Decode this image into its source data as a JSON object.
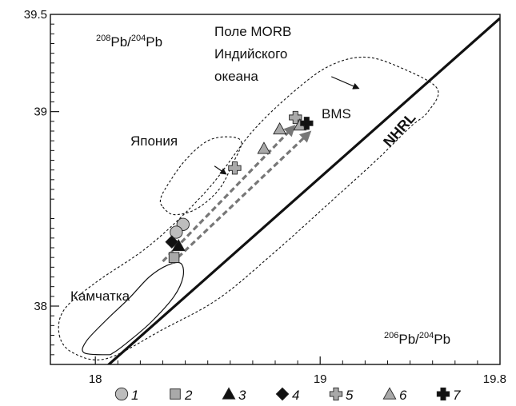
{
  "chart_data": {
    "type": "scatter",
    "xlim": [
      17.8,
      19.8
    ],
    "ylim": [
      37.7,
      39.5
    ],
    "x_major_ticks": [
      18,
      19,
      19.8
    ],
    "x_tick_labels": [
      "18",
      "19",
      "19.8"
    ],
    "x_minor_ticks": [
      18.1,
      18.2,
      18.3,
      18.4,
      18.5,
      18.6,
      18.7,
      18.8,
      18.9,
      19.1,
      19.2,
      19.3,
      19.4,
      19.5,
      19.6,
      19.7
    ],
    "y_major_ticks": [
      38,
      39,
      39.5
    ],
    "y_tick_labels": [
      "38",
      "39",
      "39.5"
    ],
    "y_minor_ticks": [
      37.75,
      37.8,
      37.85,
      37.9,
      37.95,
      38.05,
      38.1,
      38.15,
      38.2,
      38.25,
      38.3,
      38.35,
      38.4,
      38.45,
      38.55,
      38.6,
      38.65,
      38.7,
      38.75,
      38.8,
      38.85,
      38.9,
      38.95,
      39.05,
      39.1,
      39.15,
      39.2,
      39.25,
      39.3,
      39.35,
      39.4,
      39.45
    ],
    "x_axis_label": {
      "main": "Pb",
      "pre_sup_1": "206",
      "mid": "/",
      "pre_sup_2": "204",
      "tail": "Pb"
    },
    "y_axis_label": {
      "pre_sup_1": "208",
      "main": "Pb/",
      "pre_sup_2": "204",
      "tail": "Pb"
    },
    "annotations": {
      "morb": [
        "Поле MORB",
        "Индийского",
        "океана"
      ],
      "japan": "Япония",
      "kamchatka": "Камчатка",
      "bms": "BMS",
      "nhrl": "NHRL"
    },
    "reference_line": {
      "name": "NHRL",
      "points": [
        [
          18.05,
          37.69
        ],
        [
          19.8,
          39.48
        ]
      ]
    },
    "fields": [
      {
        "name": "Поле MORB Индийского океана",
        "style": "dotted",
        "points": [
          [
            17.84,
            37.85
          ],
          [
            17.9,
            37.76
          ],
          [
            18.05,
            37.73
          ],
          [
            18.3,
            37.88
          ],
          [
            18.55,
            38.04
          ],
          [
            18.8,
            38.28
          ],
          [
            19.05,
            38.54
          ],
          [
            19.25,
            38.75
          ],
          [
            19.4,
            38.92
          ],
          [
            19.48,
            39.0
          ],
          [
            19.52,
            39.12
          ],
          [
            19.35,
            39.23
          ],
          [
            19.2,
            39.28
          ],
          [
            19.05,
            39.24
          ],
          [
            18.9,
            39.12
          ],
          [
            18.7,
            38.9
          ],
          [
            18.5,
            38.6
          ],
          [
            18.25,
            38.32
          ],
          [
            18.0,
            38.12
          ],
          [
            17.86,
            37.98
          ]
        ]
      },
      {
        "name": "Япония",
        "style": "dotted",
        "points": [
          [
            18.3,
            38.51
          ],
          [
            18.35,
            38.47
          ],
          [
            18.45,
            38.5
          ],
          [
            18.55,
            38.6
          ],
          [
            18.61,
            38.73
          ],
          [
            18.65,
            38.84
          ],
          [
            18.6,
            38.87
          ],
          [
            18.5,
            38.85
          ],
          [
            18.4,
            38.75
          ],
          [
            18.32,
            38.62
          ],
          [
            18.29,
            38.55
          ]
        ]
      },
      {
        "name": "Камчатка",
        "style": "solid",
        "points": [
          [
            18.05,
            37.75
          ],
          [
            17.95,
            37.76
          ],
          [
            17.96,
            37.82
          ],
          [
            18.05,
            37.93
          ],
          [
            18.15,
            38.04
          ],
          [
            18.24,
            38.15
          ],
          [
            18.32,
            38.21
          ],
          [
            18.38,
            38.22
          ],
          [
            18.39,
            38.15
          ],
          [
            18.35,
            38.05
          ],
          [
            18.25,
            37.92
          ],
          [
            18.15,
            37.82
          ],
          [
            18.08,
            37.76
          ]
        ]
      }
    ],
    "trends": [
      {
        "from": [
          18.3,
          38.23
        ],
        "to": [
          18.88,
          38.92
        ],
        "style": "dashed"
      },
      {
        "from": [
          18.34,
          38.22
        ],
        "to": [
          18.95,
          38.89
        ],
        "style": "dashed"
      }
    ],
    "field_arrows": [
      {
        "from": [
          19.05,
          39.18
        ],
        "to": [
          19.17,
          39.12
        ]
      },
      {
        "from": [
          18.53,
          38.72
        ],
        "to": [
          18.58,
          38.68
        ]
      }
    ],
    "series": [
      {
        "name": "1",
        "marker": "circle",
        "color": "#bdbdbd",
        "points": [
          [
            18.39,
            38.42
          ],
          [
            18.36,
            38.38
          ]
        ]
      },
      {
        "name": "2",
        "marker": "square",
        "color": "#a9a9a9",
        "points": [
          [
            18.35,
            38.25
          ]
        ]
      },
      {
        "name": "3",
        "marker": "triangle",
        "color": "#111111",
        "points": [
          [
            18.37,
            38.31
          ]
        ]
      },
      {
        "name": "4",
        "marker": "diamond",
        "color": "#111111",
        "points": [
          [
            18.34,
            38.33
          ]
        ]
      },
      {
        "name": "5",
        "marker": "plus",
        "color": "#a9a9a9",
        "points": [
          [
            18.62,
            38.71
          ],
          [
            18.89,
            38.97
          ]
        ]
      },
      {
        "name": "6",
        "marker": "triangle",
        "color": "#a9a9a9",
        "points": [
          [
            18.75,
            38.81
          ],
          [
            18.82,
            38.91
          ],
          [
            18.91,
            38.93
          ]
        ]
      },
      {
        "name": "7",
        "marker": "plus",
        "color": "#111111",
        "points": [
          [
            18.94,
            38.94
          ]
        ]
      }
    ],
    "legend": [
      "1",
      "2",
      "3",
      "4",
      "5",
      "6",
      "7"
    ],
    "grid": false
  }
}
